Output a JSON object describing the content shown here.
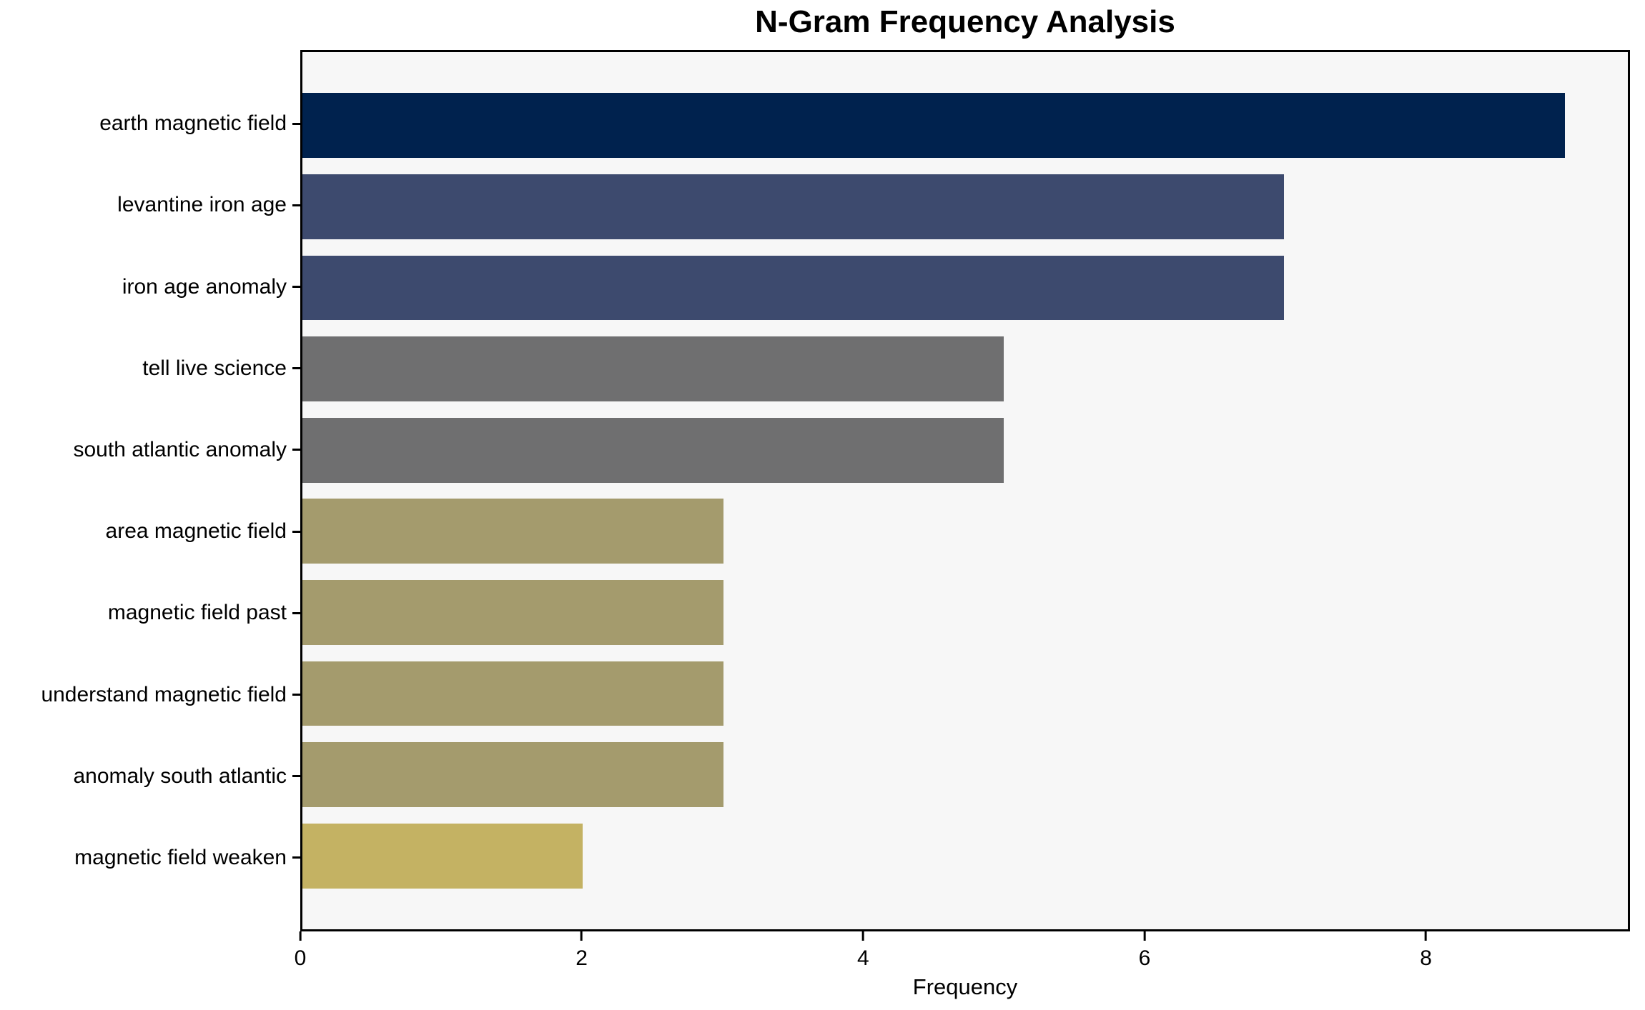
{
  "chart_data": {
    "type": "bar",
    "orientation": "horizontal",
    "title": "N-Gram Frequency Analysis",
    "xlabel": "Frequency",
    "ylabel": "",
    "categories": [
      "earth magnetic field",
      "levantine iron age",
      "iron age anomaly",
      "tell live science",
      "south atlantic anomaly",
      "area magnetic field",
      "magnetic field past",
      "understand magnetic field",
      "anomaly south atlantic",
      "magnetic field weaken"
    ],
    "values": [
      9,
      7,
      7,
      5,
      5,
      3,
      3,
      3,
      3,
      2
    ],
    "bar_colors": [
      "#00224e",
      "#3d4a6e",
      "#3d4a6e",
      "#6f6f70",
      "#6f6f70",
      "#a49b6d",
      "#a49b6d",
      "#a49b6d",
      "#a49b6d",
      "#c4b263"
    ],
    "xlim": [
      0,
      9.45
    ],
    "x_ticks": [
      0,
      2,
      4,
      6,
      8
    ],
    "grid": false,
    "legend": "none",
    "bar_relative_height": 0.8,
    "plot_background": "#f7f7f7",
    "figure_background": "#ffffff",
    "spine_color": "#000000",
    "text_color": "#000000"
  }
}
